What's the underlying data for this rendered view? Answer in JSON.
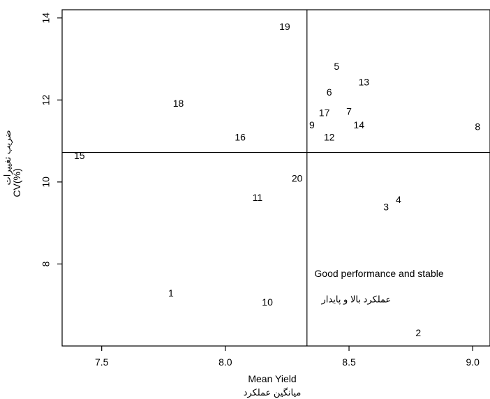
{
  "chart_data": {
    "type": "scatter",
    "title": "",
    "xlabel": "Mean Yield",
    "xlabel_secondary": "میانگین عملکرد",
    "ylabel": "CV(%)",
    "ylabel_secondary": "ضریب تغییرات",
    "xlim": [
      7.34,
      9.07
    ],
    "ylim": [
      6.0,
      14.2
    ],
    "xticks": [
      7.5,
      8.0,
      8.5,
      9.0
    ],
    "xtick_labels": [
      "7.5",
      "8.0",
      "8.5",
      "9.0"
    ],
    "yticks": [
      8,
      10,
      12,
      14
    ],
    "ytick_labels": [
      "8",
      "10",
      "12",
      "14"
    ],
    "reference_lines": {
      "mean_yield": 8.33,
      "mean_cv": 10.72
    },
    "grid": false,
    "points": [
      {
        "label": "1",
        "x": 7.78,
        "y": 7.27
      },
      {
        "label": "2",
        "x": 8.78,
        "y": 6.3
      },
      {
        "label": "3",
        "x": 8.65,
        "y": 9.37
      },
      {
        "label": "4",
        "x": 8.7,
        "y": 9.55
      },
      {
        "label": "5",
        "x": 8.45,
        "y": 12.8
      },
      {
        "label": "6",
        "x": 8.42,
        "y": 12.17
      },
      {
        "label": "7",
        "x": 8.5,
        "y": 11.7
      },
      {
        "label": "8",
        "x": 9.02,
        "y": 11.33
      },
      {
        "label": "9",
        "x": 8.35,
        "y": 11.37
      },
      {
        "label": "10",
        "x": 8.17,
        "y": 7.05
      },
      {
        "label": "11",
        "x": 8.13,
        "y": 9.6
      },
      {
        "label": "12",
        "x": 8.42,
        "y": 11.07
      },
      {
        "label": "13",
        "x": 8.56,
        "y": 12.42
      },
      {
        "label": "14",
        "x": 8.54,
        "y": 11.37
      },
      {
        "label": "15",
        "x": 7.41,
        "y": 10.62
      },
      {
        "label": "16",
        "x": 8.06,
        "y": 11.07
      },
      {
        "label": "17",
        "x": 8.4,
        "y": 11.67
      },
      {
        "label": "18",
        "x": 7.81,
        "y": 11.9
      },
      {
        "label": "19",
        "x": 8.24,
        "y": 13.77
      },
      {
        "label": "20",
        "x": 8.29,
        "y": 10.07
      }
    ],
    "annotations": [
      {
        "text": "Good performance and stable",
        "x": 8.36,
        "y": 7.75
      },
      {
        "text": "عملکرد بالا و پایدار",
        "x": 8.67,
        "y": 7.12
      }
    ]
  }
}
